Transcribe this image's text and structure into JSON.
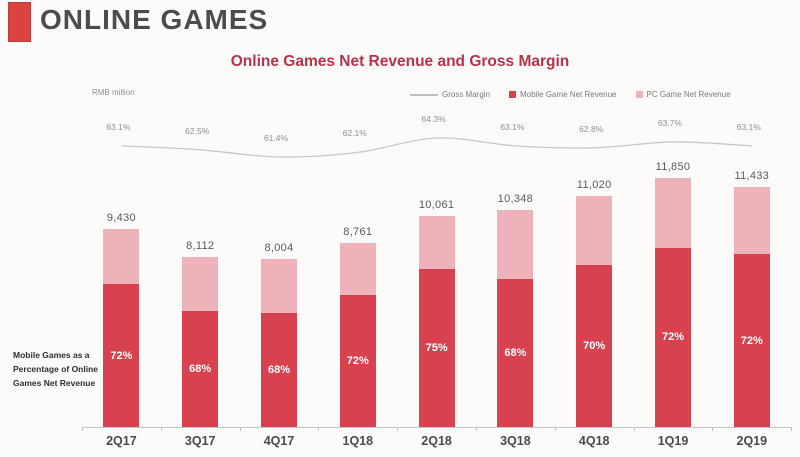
{
  "header": {
    "title": "ONLINE GAMES",
    "accent_color": "#d9453e"
  },
  "chart": {
    "title": "Online Games Net Revenue and Gross Margin",
    "unit_label": "RMB million",
    "side_note": "Mobile Games as a Percentage of Online Games Net Revenue",
    "title_color": "#b5334a"
  },
  "chart_data": {
    "type": "bar",
    "stacked": true,
    "grid": false,
    "legend_position": "top-right",
    "ylabel": "RMB million",
    "categories": [
      "2Q17",
      "3Q17",
      "4Q17",
      "1Q18",
      "2Q18",
      "3Q18",
      "4Q18",
      "1Q19",
      "2Q19"
    ],
    "totals": [
      9430,
      8112,
      8004,
      8761,
      10061,
      10348,
      11020,
      11850,
      11433
    ],
    "total_labels": [
      "9,430",
      "8,112",
      "8,004",
      "8,761",
      "10,061",
      "10,348",
      "11,020",
      "11,850",
      "11,433"
    ],
    "series": [
      {
        "name": "Mobile Game Net Revenue",
        "role": "bar-bottom-segment",
        "color": "#d8424f",
        "percent_of_total": [
          72,
          68,
          68,
          72,
          75,
          68,
          70,
          72,
          72
        ]
      },
      {
        "name": "PC Game Net Revenue",
        "role": "bar-top-segment",
        "color": "#eeb3ba"
      },
      {
        "name": "Gross Margin",
        "role": "line",
        "color": "#c7c7c7",
        "values_pct": [
          63.1,
          62.5,
          61.4,
          62.1,
          64.3,
          63.1,
          62.8,
          63.7,
          63.1
        ]
      }
    ],
    "mobile_pct_labels": [
      "72%",
      "68%",
      "68%",
      "72%",
      "75%",
      "68%",
      "70%",
      "72%",
      "72%"
    ],
    "gross_margin_labels": [
      "63.1%",
      "62.5%",
      "61.4%",
      "62.1%",
      "64.3%",
      "63.1%",
      "62.8%",
      "63.7%",
      "63.1%"
    ],
    "legend": [
      {
        "label": "Gross Margin",
        "type": "line",
        "color": "#bfbfbf"
      },
      {
        "label": "Mobile Game Net Revenue",
        "type": "square",
        "color": "#d8424f"
      },
      {
        "label": "PC Game Net Revenue",
        "type": "square",
        "color": "#eeb3ba"
      }
    ]
  }
}
